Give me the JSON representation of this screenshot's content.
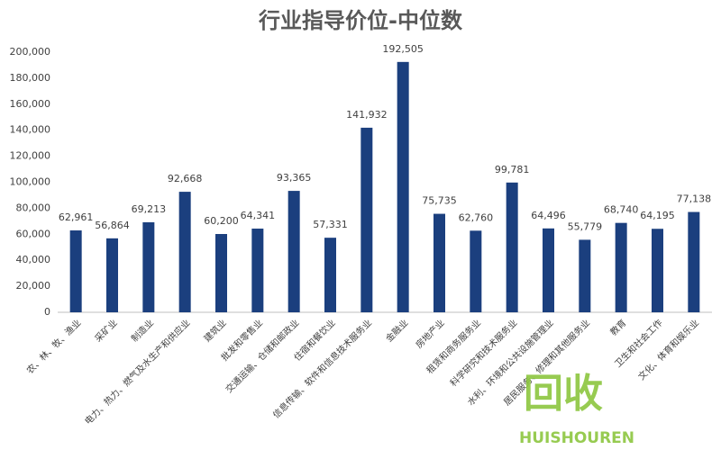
{
  "chart_data": {
    "type": "bar",
    "title": "行业指导价位-中位数",
    "categories": [
      "农、林、牧、渔业",
      "采矿业",
      "制造业",
      "电力、热力、燃气及水生产和供应业",
      "建筑业",
      "批发和零售业",
      "交通运输、仓储和邮政业",
      "住宿和餐饮业",
      "信息传输、软件和信息技术服务业",
      "金融业",
      "房地产业",
      "租赁和商务服务业",
      "科学研究和技术服务业",
      "水利、环境和公共设施管理业",
      "居民服务、修理和其他服务业",
      "教育",
      "卫生和社会工作",
      "文化、体育和娱乐业"
    ],
    "values": [
      62961,
      56864,
      69213,
      92668,
      60200,
      64341,
      93365,
      57331,
      141932,
      192505,
      75735,
      62760,
      99781,
      64496,
      55779,
      68740,
      64195,
      77138
    ],
    "value_labels": [
      "62,961",
      "56,864",
      "69,213",
      "92,668",
      "60,200",
      "64,341",
      "93,365",
      "57,331",
      "141,932",
      "192,505",
      "75,735",
      "62,760",
      "99,781",
      "64,496",
      "55,779",
      "68,740",
      "64,195",
      "77,138"
    ],
    "color": "#1b3f7e",
    "ylim": [
      0,
      200000
    ],
    "yticks": [
      0,
      {
        "value": 20000,
        "label": "20,000"
      },
      {
        "value": 40000,
        "label": "40,000"
      },
      {
        "value": 60000,
        "label": "60,000"
      },
      {
        "value": 80000,
        "label": "80,000"
      },
      {
        "value": 100000,
        "label": "100,000"
      },
      {
        "value": 120000,
        "label": "120,000"
      },
      {
        "value": 140000,
        "label": "140,000"
      },
      {
        "value": 160000,
        "label": "160,000"
      },
      {
        "value": 180000,
        "label": "180,000"
      },
      {
        "value": 200000,
        "label": "200,000"
      }
    ],
    "grid": false,
    "watermark": {
      "icon_text": "回收",
      "text": "HUISHOUREN"
    }
  }
}
